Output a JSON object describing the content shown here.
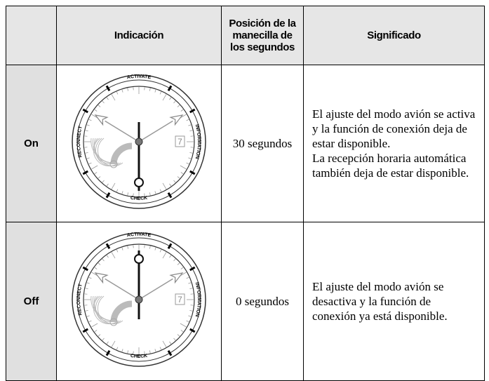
{
  "table": {
    "header": [
      "Indicación",
      "Posición de la manecilla de los segundos",
      "Significado"
    ],
    "rows": [
      {
        "label": "On",
        "position": "30 segundos",
        "meaning": [
          "El ajuste del modo avión se activa y la función de conexión deja de estar disponible.",
          "La recepción horaria automática también deja de estar disponible."
        ]
      },
      {
        "label": "Off",
        "position": "0 segundos",
        "meaning": [
          "El ajuste del modo avión se desactiva y la función de conexión ya está disponible."
        ]
      }
    ]
  },
  "watch": {
    "top": "ACTIVATE",
    "bottom": "CHECK",
    "left": "RECONNECT",
    "right": "INFORMATION",
    "date": "7"
  }
}
